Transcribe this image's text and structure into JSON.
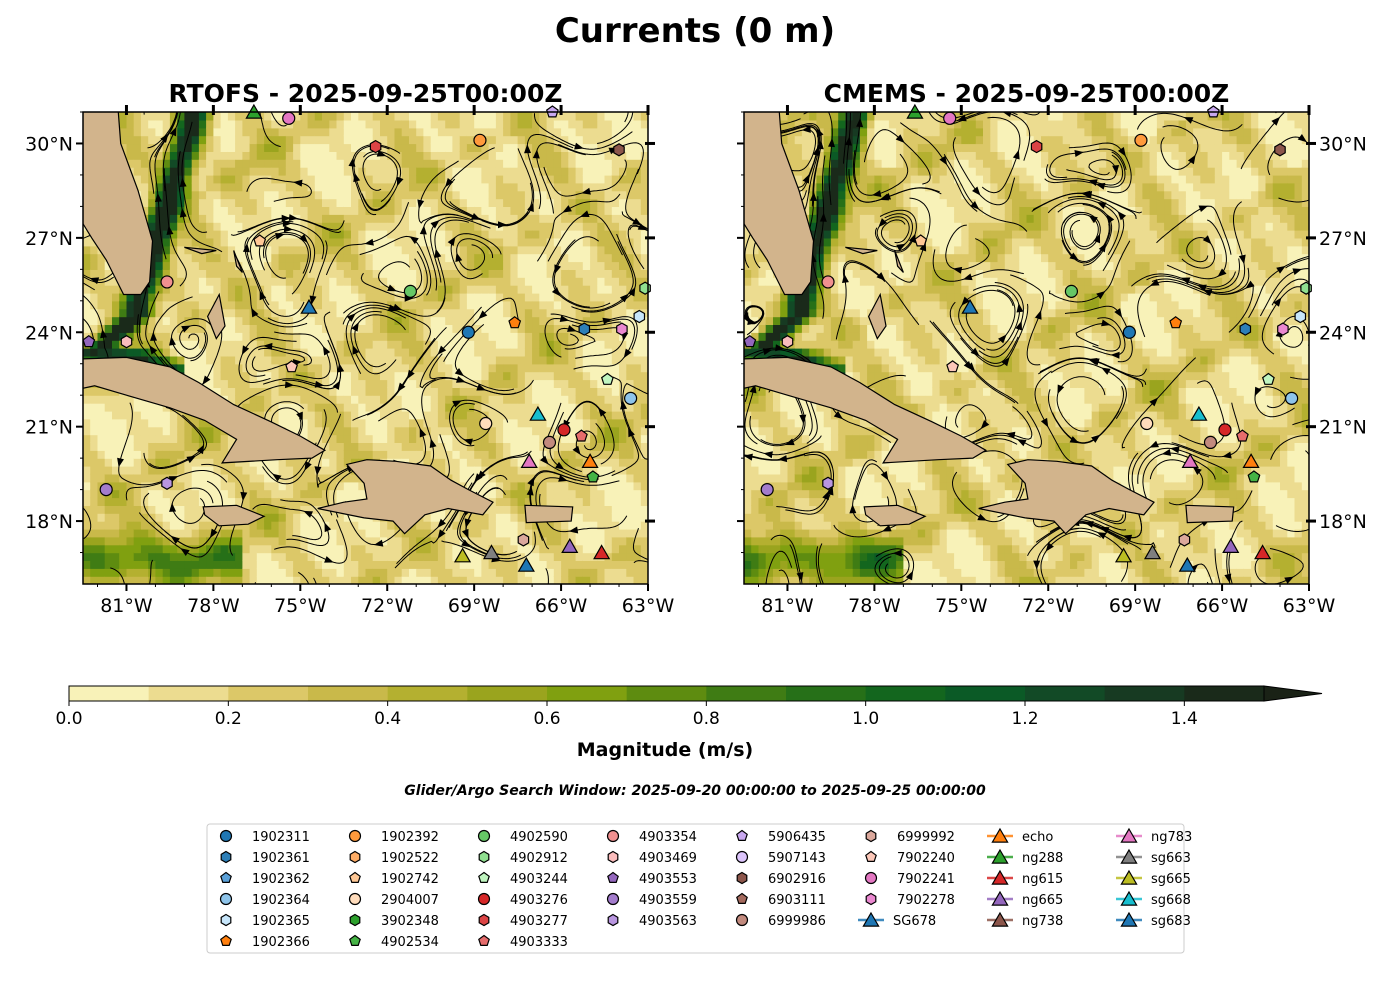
{
  "title": "Currents (0 m)",
  "panels": [
    {
      "id": "rtofs",
      "title": "RTOFS - 2025-09-25T00:00Z",
      "seed": 1
    },
    {
      "id": "cmems",
      "title": "CMEMS - 2025-09-25T00:00Z",
      "seed": 2
    }
  ],
  "map": {
    "lon_range": [
      -82.5,
      -63
    ],
    "lat_range": [
      16,
      31
    ],
    "lon_ticks": [
      {
        "v": -81,
        "label": "81°W"
      },
      {
        "v": -78,
        "label": "78°W"
      },
      {
        "v": -75,
        "label": "75°W"
      },
      {
        "v": -72,
        "label": "72°W"
      },
      {
        "v": -69,
        "label": "69°W"
      },
      {
        "v": -66,
        "label": "66°W"
      },
      {
        "v": -63,
        "label": "63°W"
      }
    ],
    "lat_ticks": [
      {
        "v": 18,
        "label": "18°N"
      },
      {
        "v": 21,
        "label": "21°N"
      },
      {
        "v": 24,
        "label": "24°N"
      },
      {
        "v": 27,
        "label": "27°N"
      },
      {
        "v": 30,
        "label": "30°N"
      }
    ],
    "land_color": "#d2b48c",
    "ocean_low_color": "#f8f2b8"
  },
  "colorbar": {
    "label": "Magnitude (m/s)",
    "range": [
      0,
      1.5
    ],
    "ticks": [
      "0.0",
      "0.2",
      "0.4",
      "0.6",
      "0.8",
      "1.0",
      "1.2",
      "1.4"
    ],
    "colors": [
      "#f8f2b8",
      "#ecdc90",
      "#dcc868",
      "#c9b94a",
      "#b4b030",
      "#9aa41e",
      "#80a010",
      "#5e8c10",
      "#3f7c14",
      "#267018",
      "#13661e",
      "#0b5a26",
      "#124a26",
      "#173a22",
      "#1a2a1a"
    ],
    "extend_color": "#1a2216"
  },
  "search_window": "Glider/Argo Search Window: 2025-09-20 00:00:00 to 2025-09-25 00:00:00",
  "legend": [
    {
      "label": "1902311",
      "shape": "circle",
      "color": "#1f77b4"
    },
    {
      "label": "1902361",
      "shape": "hexagon",
      "color": "#2d7fb8"
    },
    {
      "label": "1902362",
      "shape": "pentagon",
      "color": "#5aa0d8"
    },
    {
      "label": "1902364",
      "shape": "circle",
      "color": "#8ec4ea"
    },
    {
      "label": "1902365",
      "shape": "hexagon",
      "color": "#c7e6fb"
    },
    {
      "label": "1902366",
      "shape": "pentagon",
      "color": "#ff7f0e"
    },
    {
      "label": "1902392",
      "shape": "circle",
      "color": "#ff9a3c"
    },
    {
      "label": "1902522",
      "shape": "hexagon",
      "color": "#ffad66"
    },
    {
      "label": "1902742",
      "shape": "pentagon",
      "color": "#ffc896"
    },
    {
      "label": "2904007",
      "shape": "circle",
      "color": "#ffdcbc"
    },
    {
      "label": "3902348",
      "shape": "hexagon",
      "color": "#2ca02c"
    },
    {
      "label": "4902534",
      "shape": "pentagon",
      "color": "#45b345"
    },
    {
      "label": "4902590",
      "shape": "circle",
      "color": "#66c766"
    },
    {
      "label": "4902912",
      "shape": "hexagon",
      "color": "#90e090"
    },
    {
      "label": "4903244",
      "shape": "pentagon",
      "color": "#c0f5c0"
    },
    {
      "label": "4903276",
      "shape": "circle",
      "color": "#d62728"
    },
    {
      "label": "4903277",
      "shape": "hexagon",
      "color": "#dc4445"
    },
    {
      "label": "4903333",
      "shape": "pentagon",
      "color": "#e66c6c"
    },
    {
      "label": "4903354",
      "shape": "circle",
      "color": "#f09090"
    },
    {
      "label": "4903469",
      "shape": "hexagon",
      "color": "#fbbcbc"
    },
    {
      "label": "4903553",
      "shape": "pentagon",
      "color": "#9467bd"
    },
    {
      "label": "4903559",
      "shape": "circle",
      "color": "#a37ccc"
    },
    {
      "label": "4903563",
      "shape": "hexagon",
      "color": "#b996e0"
    },
    {
      "label": "5906435",
      "shape": "pentagon",
      "color": "#c9a8f0"
    },
    {
      "label": "5907143",
      "shape": "circle",
      "color": "#dcc4fb"
    },
    {
      "label": "6902916",
      "shape": "hexagon",
      "color": "#8c564b"
    },
    {
      "label": "6903111",
      "shape": "pentagon",
      "color": "#a46a5e"
    },
    {
      "label": "6999986",
      "shape": "circle",
      "color": "#c28a7e"
    },
    {
      "label": "6999992",
      "shape": "hexagon",
      "color": "#dba89c"
    },
    {
      "label": "7902240",
      "shape": "pentagon",
      "color": "#fcc7b8"
    },
    {
      "label": "7902241",
      "shape": "circle",
      "color": "#e377c2"
    },
    {
      "label": "7902278",
      "shape": "hexagon",
      "color": "#ea88d0"
    },
    {
      "label": "SG678",
      "shape": "triangle",
      "color": "#1f77b4"
    },
    {
      "label": "echo",
      "shape": "triangle",
      "color": "#ff7f0e"
    },
    {
      "label": "ng288",
      "shape": "triangle",
      "color": "#2ca02c"
    },
    {
      "label": "ng615",
      "shape": "triangle",
      "color": "#d62728"
    },
    {
      "label": "ng665",
      "shape": "triangle",
      "color": "#9467bd"
    },
    {
      "label": "ng738",
      "shape": "triangle",
      "color": "#8c564b"
    },
    {
      "label": "ng783",
      "shape": "triangle",
      "color": "#e377c2"
    },
    {
      "label": "sg663",
      "shape": "triangle",
      "color": "#7f7f7f"
    },
    {
      "label": "sg665",
      "shape": "triangle",
      "color": "#bcbd22"
    },
    {
      "label": "sg668",
      "shape": "triangle",
      "color": "#17becf"
    },
    {
      "label": "sg683",
      "shape": "triangle",
      "color": "#1f77b4"
    }
  ],
  "platforms": [
    {
      "id": "ng288",
      "lon": -76.6,
      "lat": 31.0
    },
    {
      "id": "7902241",
      "lon": -75.4,
      "lat": 30.8
    },
    {
      "id": "4903277",
      "lon": -72.4,
      "lat": 29.9
    },
    {
      "id": "1902392",
      "lon": -68.8,
      "lat": 30.1
    },
    {
      "id": "5906435",
      "lon": -66.3,
      "lat": 31.0
    },
    {
      "id": "6902916",
      "lon": -64.0,
      "lat": 29.8
    },
    {
      "id": "1902742",
      "lon": -76.4,
      "lat": 26.9
    },
    {
      "id": "4903354",
      "lon": -79.6,
      "lat": 25.6
    },
    {
      "id": "4902590",
      "lon": -71.2,
      "lat": 25.3
    },
    {
      "id": "SG678",
      "lon": -74.7,
      "lat": 24.8
    },
    {
      "id": "1902366",
      "lon": -67.6,
      "lat": 24.3
    },
    {
      "id": "1902361",
      "lon": -65.2,
      "lat": 24.1
    },
    {
      "id": "7902278",
      "lon": -63.9,
      "lat": 24.1
    },
    {
      "id": "1902365",
      "lon": -63.3,
      "lat": 24.5
    },
    {
      "id": "4902912",
      "lon": -63.1,
      "lat": 25.4
    },
    {
      "id": "1902311",
      "lon": -69.2,
      "lat": 24.0
    },
    {
      "id": "4903553",
      "lon": -82.3,
      "lat": 23.7
    },
    {
      "id": "4903469",
      "lon": -81.0,
      "lat": 23.7
    },
    {
      "id": "7902240",
      "lon": -75.3,
      "lat": 22.9
    },
    {
      "id": "4903244",
      "lon": -64.4,
      "lat": 22.5
    },
    {
      "id": "1902364",
      "lon": -63.6,
      "lat": 21.9
    },
    {
      "id": "2904007",
      "lon": -68.6,
      "lat": 21.1
    },
    {
      "id": "sg668",
      "lon": -66.8,
      "lat": 21.4
    },
    {
      "id": "4903276",
      "lon": -65.9,
      "lat": 20.9
    },
    {
      "id": "6999986",
      "lon": -66.4,
      "lat": 20.5
    },
    {
      "id": "4903333",
      "lon": -65.3,
      "lat": 20.7
    },
    {
      "id": "ng783",
      "lon": -67.1,
      "lat": 19.9
    },
    {
      "id": "echo",
      "lon": -65.0,
      "lat": 19.9
    },
    {
      "id": "4902534",
      "lon": -64.9,
      "lat": 19.4
    },
    {
      "id": "4903559",
      "lon": -81.7,
      "lat": 19.0
    },
    {
      "id": "4903563",
      "lon": -79.6,
      "lat": 19.2
    },
    {
      "id": "6999992",
      "lon": -67.3,
      "lat": 17.4
    },
    {
      "id": "ng665",
      "lon": -65.7,
      "lat": 17.2
    },
    {
      "id": "ng615",
      "lon": -64.6,
      "lat": 17.0
    },
    {
      "id": "sg665",
      "lon": -69.4,
      "lat": 16.9
    },
    {
      "id": "sg663",
      "lon": -68.4,
      "lat": 17.0
    },
    {
      "id": "sg683",
      "lon": -67.2,
      "lat": 16.6
    }
  ]
}
